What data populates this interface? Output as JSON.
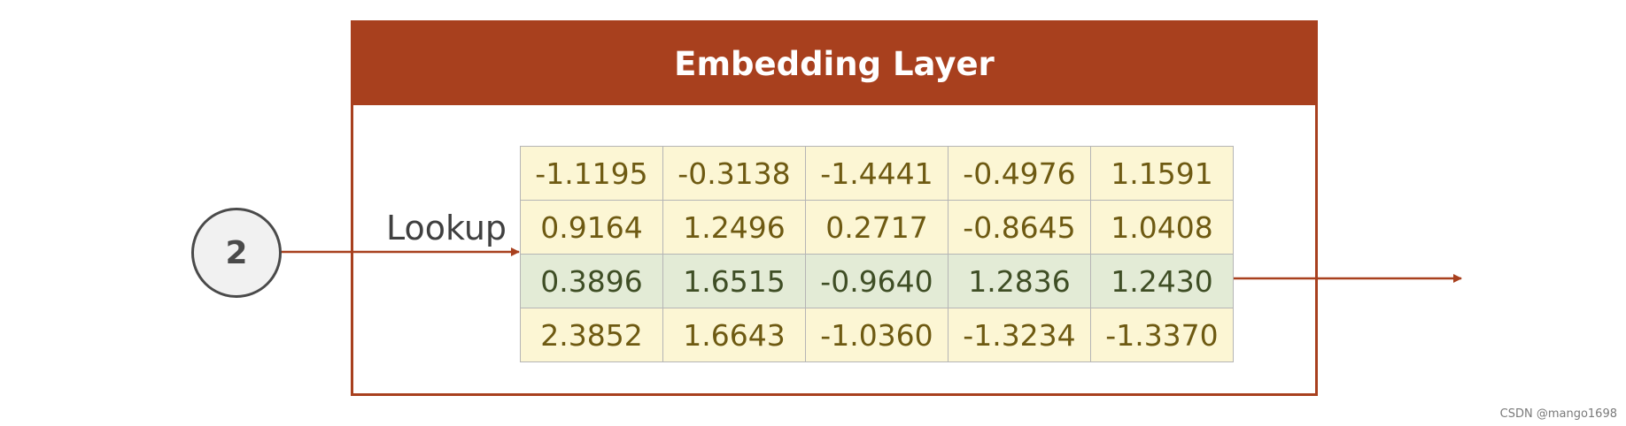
{
  "layer": {
    "title": "Embedding Layer"
  },
  "input_token": "2",
  "lookup_label": "Lookup",
  "embedding_matrix": [
    [
      "-1.1195",
      "-0.3138",
      "-1.4441",
      "-0.4976",
      "1.1591"
    ],
    [
      "0.9164",
      "1.2496",
      "0.2717",
      "-0.8645",
      "1.0408"
    ],
    [
      "0.3896",
      "1.6515",
      "-0.9640",
      "1.2836",
      "1.2430"
    ],
    [
      "2.3852",
      "1.6643",
      "-1.0360",
      "-1.3234",
      "-1.3370"
    ]
  ],
  "selected_row": 2,
  "colors": {
    "accent": "#a8401e",
    "cell_bg": "#fcf6d4",
    "cell_text": "#6e5a12",
    "selected_bg": "#e3ebd6",
    "selected_text": "#3f4e25"
  },
  "watermark": "CSDN @mango1698"
}
